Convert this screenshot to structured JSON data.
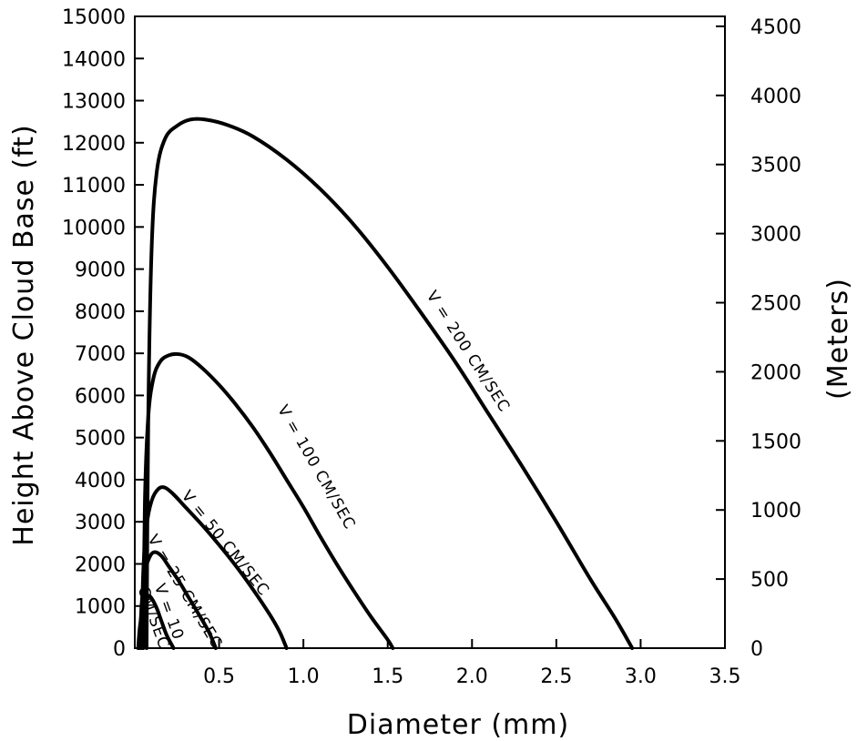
{
  "chart_data": {
    "type": "line",
    "title": "",
    "xlabel": "Diameter (mm)",
    "ylabel": "Height Above Cloud Base (ft)",
    "y2label": "(Meters)",
    "xlim": [
      0,
      3.5
    ],
    "ylim": [
      0,
      15000
    ],
    "y2lim": [
      0,
      4572
    ],
    "grid": false,
    "x_ticks": [
      {
        "value": 0.5,
        "label": "0.5"
      },
      {
        "value": 1.0,
        "label": "1.0"
      },
      {
        "value": 1.5,
        "label": "1.5"
      },
      {
        "value": 2.0,
        "label": "2.0"
      },
      {
        "value": 2.5,
        "label": "2.5"
      },
      {
        "value": 3.0,
        "label": "3.0"
      },
      {
        "value": 3.5,
        "label": "3.5"
      }
    ],
    "y_ticks": [
      {
        "value": 0,
        "label": "0"
      },
      {
        "value": 1000,
        "label": "1000"
      },
      {
        "value": 2000,
        "label": "2000"
      },
      {
        "value": 3000,
        "label": "3000"
      },
      {
        "value": 4000,
        "label": "4000"
      },
      {
        "value": 5000,
        "label": "5000"
      },
      {
        "value": 6000,
        "label": "6000"
      },
      {
        "value": 7000,
        "label": "7000"
      },
      {
        "value": 8000,
        "label": "8000"
      },
      {
        "value": 9000,
        "label": "9000"
      },
      {
        "value": 10000,
        "label": "10000"
      },
      {
        "value": 11000,
        "label": "11000"
      },
      {
        "value": 12000,
        "label": "12000"
      },
      {
        "value": 13000,
        "label": "13000"
      },
      {
        "value": 14000,
        "label": "14000"
      },
      {
        "value": 15000,
        "label": "15000"
      }
    ],
    "y2_ticks": [
      {
        "value": 0,
        "label": "0"
      },
      {
        "value": 500,
        "label": "500"
      },
      {
        "value": 1000,
        "label": "1000"
      },
      {
        "value": 1500,
        "label": "1500"
      },
      {
        "value": 2000,
        "label": "2000"
      },
      {
        "value": 2500,
        "label": "2500"
      },
      {
        "value": 3000,
        "label": "3000"
      },
      {
        "value": 3500,
        "label": "3500"
      },
      {
        "value": 4000,
        "label": "4000"
      },
      {
        "value": 4500,
        "label": "4500"
      }
    ],
    "series": [
      {
        "name": "V = 200 CM/SEC",
        "label_lines": [
          "V = 200 CM/SEC"
        ],
        "label_anchor": [
          1.98,
          7050
        ],
        "points": [
          [
            0.07,
            0
          ],
          [
            0.08,
            5500
          ],
          [
            0.1,
            9500
          ],
          [
            0.13,
            11300
          ],
          [
            0.18,
            12100
          ],
          [
            0.25,
            12400
          ],
          [
            0.33,
            12550
          ],
          [
            0.42,
            12550
          ],
          [
            0.55,
            12420
          ],
          [
            0.7,
            12150
          ],
          [
            0.9,
            11600
          ],
          [
            1.1,
            10900
          ],
          [
            1.3,
            10050
          ],
          [
            1.5,
            9050
          ],
          [
            1.7,
            7950
          ],
          [
            1.9,
            6800
          ],
          [
            2.1,
            5550
          ],
          [
            2.3,
            4300
          ],
          [
            2.5,
            3000
          ],
          [
            2.7,
            1650
          ],
          [
            2.85,
            700
          ],
          [
            2.95,
            0
          ]
        ]
      },
      {
        "name": "V = 100 CM/SEC",
        "label_lines": [
          "V = 100 CM/SEC"
        ],
        "label_anchor": [
          1.08,
          4300
        ],
        "points": [
          [
            0.05,
            0
          ],
          [
            0.06,
            3500
          ],
          [
            0.08,
            5500
          ],
          [
            0.11,
            6400
          ],
          [
            0.15,
            6800
          ],
          [
            0.2,
            6950
          ],
          [
            0.26,
            6980
          ],
          [
            0.32,
            6900
          ],
          [
            0.4,
            6650
          ],
          [
            0.5,
            6250
          ],
          [
            0.6,
            5780
          ],
          [
            0.7,
            5250
          ],
          [
            0.8,
            4650
          ],
          [
            0.9,
            4000
          ],
          [
            1.0,
            3350
          ],
          [
            1.1,
            2650
          ],
          [
            1.2,
            1980
          ],
          [
            1.3,
            1350
          ],
          [
            1.4,
            750
          ],
          [
            1.5,
            200
          ],
          [
            1.53,
            0
          ]
        ]
      },
      {
        "name": "V = 50 CM/SEC",
        "label_lines": [
          "V = 50 CM/SEC"
        ],
        "label_anchor": [
          0.54,
          2500
        ],
        "points": [
          [
            0.04,
            0
          ],
          [
            0.05,
            1800
          ],
          [
            0.07,
            2900
          ],
          [
            0.1,
            3500
          ],
          [
            0.14,
            3780
          ],
          [
            0.18,
            3810
          ],
          [
            0.23,
            3650
          ],
          [
            0.3,
            3350
          ],
          [
            0.4,
            2920
          ],
          [
            0.5,
            2450
          ],
          [
            0.6,
            1950
          ],
          [
            0.7,
            1400
          ],
          [
            0.8,
            800
          ],
          [
            0.86,
            380
          ],
          [
            0.9,
            0
          ]
        ]
      },
      {
        "name": "V = 25 CM/SEC",
        "label_lines": [
          "V = 25 CM/SEC"
        ],
        "label_anchor": [
          0.3,
          1350
        ],
        "points": [
          [
            0.03,
            0
          ],
          [
            0.04,
            1000
          ],
          [
            0.06,
            1800
          ],
          [
            0.09,
            2180
          ],
          [
            0.12,
            2280
          ],
          [
            0.16,
            2180
          ],
          [
            0.2,
            1950
          ],
          [
            0.26,
            1600
          ],
          [
            0.32,
            1200
          ],
          [
            0.38,
            800
          ],
          [
            0.44,
            380
          ],
          [
            0.48,
            0
          ]
        ]
      },
      {
        "name": "V = 10 CM/SEC",
        "label_lines": [
          "V = 10",
          "CM/SEC"
        ],
        "label_anchor": [
          0.16,
          800
        ],
        "points": [
          [
            0.02,
            0
          ],
          [
            0.03,
            500
          ],
          [
            0.05,
            1000
          ],
          [
            0.08,
            1230
          ],
          [
            0.1,
            1180
          ],
          [
            0.13,
            950
          ],
          [
            0.16,
            620
          ],
          [
            0.19,
            300
          ],
          [
            0.23,
            0
          ]
        ]
      }
    ]
  }
}
